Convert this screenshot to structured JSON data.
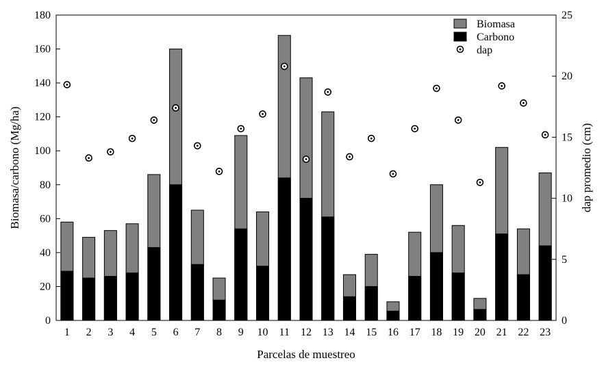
{
  "chart_data": {
    "type": "bar",
    "categories": [
      "1",
      "2",
      "3",
      "4",
      "5",
      "6",
      "7",
      "8",
      "9",
      "10",
      "11",
      "12",
      "13",
      "14",
      "15",
      "16",
      "17",
      "18",
      "19",
      "20",
      "21",
      "22",
      "23"
    ],
    "series": [
      {
        "name": "Biomasa",
        "type": "bar",
        "axis": "left",
        "color": "#808080",
        "values": [
          58,
          49,
          53,
          57,
          86,
          160,
          65,
          25,
          109,
          64,
          168,
          143,
          123,
          27,
          39,
          11,
          52,
          80,
          56,
          13,
          102,
          54,
          87
        ]
      },
      {
        "name": "Carbono",
        "type": "bar",
        "axis": "left",
        "color": "#000000",
        "values": [
          29,
          25,
          26,
          28,
          43,
          80,
          33,
          12,
          54,
          32,
          84,
          72,
          61,
          14,
          20,
          5.5,
          26,
          40,
          28,
          6.5,
          51,
          27,
          44
        ]
      },
      {
        "name": "dap",
        "type": "scatter",
        "axis": "right",
        "marker": "circle-dot",
        "values": [
          19.3,
          13.3,
          13.8,
          14.9,
          16.4,
          17.4,
          14.3,
          12.2,
          15.7,
          16.9,
          20.8,
          13.2,
          18.7,
          13.4,
          14.9,
          12.0,
          15.7,
          19.0,
          16.4,
          11.3,
          19.2,
          17.8,
          15.2
        ]
      }
    ],
    "xlabel": "Parcelas de muestreo",
    "ylabel": "Biomasa/carbono (Mg/ha)",
    "y2label": "dap promedio (cm)",
    "ylim": [
      0,
      180
    ],
    "y2lim": [
      0,
      25
    ],
    "yticks": [
      0,
      20,
      40,
      60,
      80,
      100,
      120,
      140,
      160,
      180
    ],
    "y2ticks": [
      0,
      5,
      10,
      15,
      20,
      25
    ],
    "legend": {
      "position": "top-right",
      "entries": [
        "Biomasa",
        "Carbono",
        "dap"
      ]
    },
    "grid": false
  }
}
